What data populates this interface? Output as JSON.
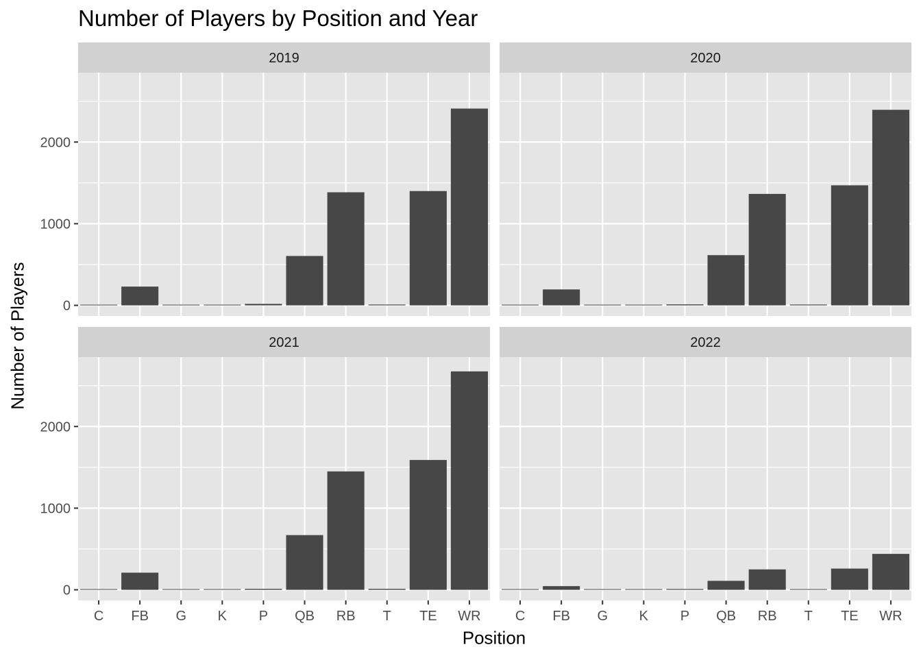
{
  "chart_data": {
    "type": "bar",
    "title": "Number of Players by Position and Year",
    "xlabel": "Position",
    "ylabel": "Number of Players",
    "categories": [
      "C",
      "FB",
      "G",
      "K",
      "P",
      "QB",
      "RB",
      "T",
      "TE",
      "WR"
    ],
    "y_ticks": [
      "0",
      "1000",
      "2000"
    ],
    "ylim": [
      -130,
      2850
    ],
    "grid": true,
    "colors": {
      "bar": "#474747",
      "panel_bg": "#e5e5e5",
      "strip_bg": "#d1d1d1",
      "grid": "#ffffff",
      "axis_text": "#4d4d4d"
    },
    "facets": [
      {
        "label": "2019",
        "values": [
          0,
          230,
          5,
          3,
          18,
          605,
          1385,
          10,
          1400,
          2410
        ]
      },
      {
        "label": "2020",
        "values": [
          5,
          195,
          8,
          3,
          12,
          615,
          1365,
          10,
          1470,
          2395
        ]
      },
      {
        "label": "2021",
        "values": [
          0,
          210,
          5,
          3,
          12,
          670,
          1450,
          12,
          1590,
          2675
        ]
      },
      {
        "label": "2022",
        "values": [
          0,
          45,
          3,
          3,
          10,
          110,
          250,
          8,
          260,
          440
        ]
      }
    ]
  }
}
